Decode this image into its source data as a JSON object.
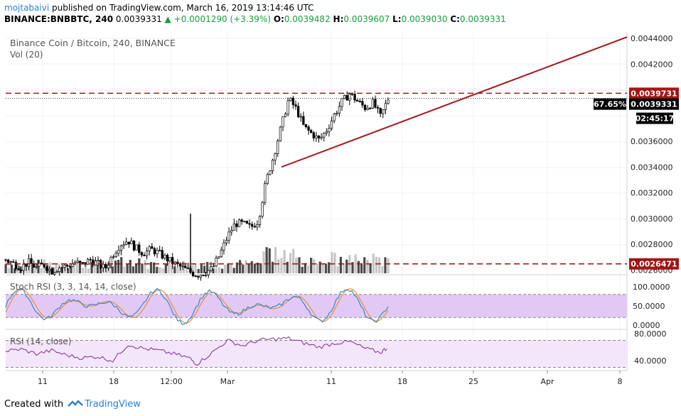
{
  "header": {
    "user": "mojtabaivi",
    "published": "published on TradingView.com, March 16, 2019 13:14:46 UTC",
    "symbol": "BINANCE:BNBBTC, 240",
    "last": "0.0039331",
    "change": "+0.0001290 (+3.39%)",
    "open_label": "O:",
    "open": "0.0039482",
    "high_label": "H:",
    "high": "0.0039607",
    "low_label": "L:",
    "low": "0.0039030",
    "close_label": "C:",
    "close": "0.0039331"
  },
  "legend": {
    "title": "Binance Coin / Bitcoin, 240, BINANCE",
    "volume": "Vol (20)",
    "stoch": "Stoch RSI (3, 3, 14, 14, close)",
    "rsi": "RSI (14, close)"
  },
  "footer": {
    "prefix": "Created with",
    "brand": "TradingView"
  },
  "colors": {
    "up": "#000000",
    "down": "#000000",
    "trendline": "#a31515",
    "resistance": "#a31515",
    "stoch_k": "#3d85c6",
    "stoch_d": "#e69138",
    "stoch_fill": "#e2c9f5",
    "rsi_line": "#7b2d8e",
    "rsi_fill": "#f3e5fa"
  },
  "chart_data": {
    "type": "candlestick",
    "price_axis": {
      "ticks": [
        "0.0044000",
        "0.0042000",
        "0.0036000",
        "0.0034000",
        "0.0032000",
        "0.0030000",
        "0.0028000",
        "0.0026000"
      ],
      "range": [
        0.00258,
        0.00444
      ]
    },
    "time_axis": {
      "labels": [
        "11",
        "18",
        "12:00",
        "Mar",
        "11",
        "18",
        "25",
        "Apr",
        "8"
      ]
    },
    "price_labels": {
      "resistance": "0.0039731",
      "last": "0.0039331",
      "percent": "67.65%",
      "countdown": "02:45:17",
      "support": "0.0026471"
    },
    "levels": {
      "resistance": 0.0039731,
      "support": 0.0026471,
      "last": 0.0039331
    },
    "trendline": {
      "points": [
        [
          0.71,
          0.0034
        ],
        [
          1.0,
          0.00441
        ]
      ]
    },
    "price_series": [
      [
        0.0,
        0.00268
      ],
      [
        0.02,
        0.00265
      ],
      [
        0.04,
        0.00262
      ],
      [
        0.06,
        0.00266
      ],
      [
        0.08,
        0.00262
      ],
      [
        0.1,
        0.00264
      ],
      [
        0.12,
        0.00259
      ],
      [
        0.14,
        0.00262
      ],
      [
        0.16,
        0.00263
      ],
      [
        0.18,
        0.00266
      ],
      [
        0.2,
        0.00264
      ],
      [
        0.22,
        0.00268
      ],
      [
        0.24,
        0.00265
      ],
      [
        0.26,
        0.00261
      ],
      [
        0.28,
        0.00272
      ],
      [
        0.3,
        0.0028
      ],
      [
        0.32,
        0.00283
      ],
      [
        0.34,
        0.00277
      ],
      [
        0.36,
        0.00273
      ],
      [
        0.38,
        0.00276
      ],
      [
        0.4,
        0.00273
      ],
      [
        0.42,
        0.00269
      ],
      [
        0.44,
        0.00265
      ],
      [
        0.46,
        0.00262
      ],
      [
        0.48,
        0.00259
      ],
      [
        0.5,
        0.00256
      ],
      [
        0.52,
        0.00258
      ],
      [
        0.54,
        0.00261
      ],
      [
        0.56,
        0.00272
      ],
      [
        0.58,
        0.00286
      ],
      [
        0.6,
        0.00296
      ],
      [
        0.62,
        0.00296
      ],
      [
        0.64,
        0.00293
      ],
      [
        0.66,
        0.00298
      ],
      [
        0.68,
        0.00328
      ],
      [
        0.7,
        0.00348
      ],
      [
        0.72,
        0.00371
      ],
      [
        0.74,
        0.00393
      ],
      [
        0.76,
        0.00385
      ],
      [
        0.78,
        0.00371
      ],
      [
        0.8,
        0.00366
      ],
      [
        0.82,
        0.00361
      ],
      [
        0.84,
        0.00369
      ],
      [
        0.86,
        0.00381
      ],
      [
        0.88,
        0.00391
      ],
      [
        0.9,
        0.00397
      ],
      [
        0.92,
        0.00391
      ],
      [
        0.94,
        0.00386
      ],
      [
        0.96,
        0.0039
      ],
      [
        0.98,
        0.00379
      ],
      [
        1.0,
        0.00393
      ]
    ],
    "stoch_rsi": {
      "ticks": [
        "100.0000",
        "50.0000",
        "0.0000"
      ],
      "range": [
        0,
        100
      ],
      "bands": [
        80,
        20
      ]
    },
    "rsi": {
      "ticks": [
        "80.0000",
        "40.0000"
      ],
      "range": [
        30,
        85
      ],
      "bands": [
        70,
        30
      ],
      "values": [
        [
          0.0,
          54
        ],
        [
          0.04,
          57
        ],
        [
          0.08,
          50
        ],
        [
          0.12,
          55
        ],
        [
          0.16,
          48
        ],
        [
          0.2,
          44
        ],
        [
          0.24,
          46
        ],
        [
          0.28,
          40
        ],
        [
          0.32,
          64
        ],
        [
          0.36,
          58
        ],
        [
          0.4,
          55
        ],
        [
          0.44,
          50
        ],
        [
          0.48,
          44
        ],
        [
          0.5,
          35
        ],
        [
          0.54,
          52
        ],
        [
          0.58,
          70
        ],
        [
          0.62,
          62
        ],
        [
          0.66,
          70
        ],
        [
          0.7,
          72
        ],
        [
          0.74,
          73
        ],
        [
          0.78,
          66
        ],
        [
          0.82,
          60
        ],
        [
          0.86,
          66
        ],
        [
          0.9,
          68
        ],
        [
          0.94,
          58
        ],
        [
          0.98,
          52
        ],
        [
          1.0,
          60
        ]
      ]
    }
  }
}
